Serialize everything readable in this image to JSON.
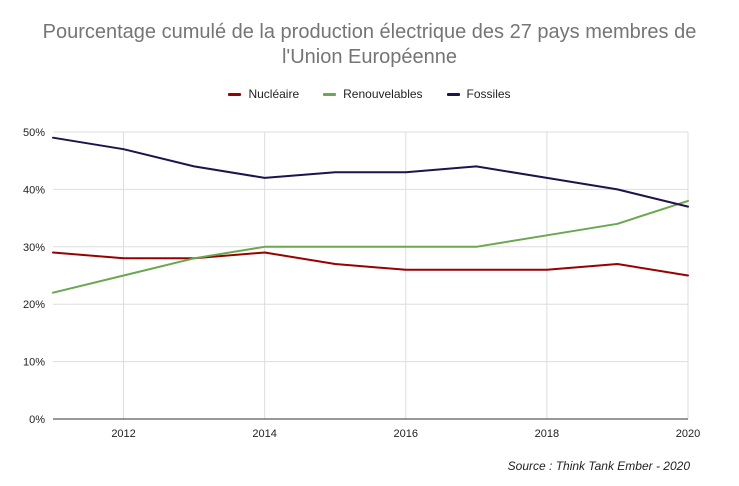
{
  "chart_data": {
    "type": "line",
    "title_line1": "Pourcentage cumulé de la production électrique des 27 pays membres de",
    "title_line2": "l'Union Européenne",
    "x": [
      2011,
      2012,
      2013,
      2014,
      2015,
      2016,
      2017,
      2018,
      2019,
      2020
    ],
    "xlim": [
      2011,
      2020
    ],
    "xticks": [
      2012,
      2014,
      2016,
      2018,
      2020
    ],
    "ylim": [
      0,
      50
    ],
    "yticks": [
      0,
      10,
      20,
      30,
      40,
      50
    ],
    "ytick_labels": [
      "0%",
      "10%",
      "20%",
      "30%",
      "40%",
      "50%"
    ],
    "grid": true,
    "legend_position": "top",
    "series": [
      {
        "name": "Nucléaire",
        "color": "#990000",
        "values": [
          29,
          28,
          28,
          29,
          27,
          26,
          26,
          26,
          27,
          25
        ]
      },
      {
        "name": "Renouvelables",
        "color": "#6aa84f",
        "values": [
          22,
          25,
          28,
          30,
          30,
          30,
          30,
          32,
          34,
          38
        ]
      },
      {
        "name": "Fossiles",
        "color": "#20124d",
        "values": [
          49,
          47,
          44,
          42,
          43,
          43,
          44,
          42,
          40,
          37
        ]
      }
    ],
    "source": "Source : Think Tank Ember - 2020"
  }
}
